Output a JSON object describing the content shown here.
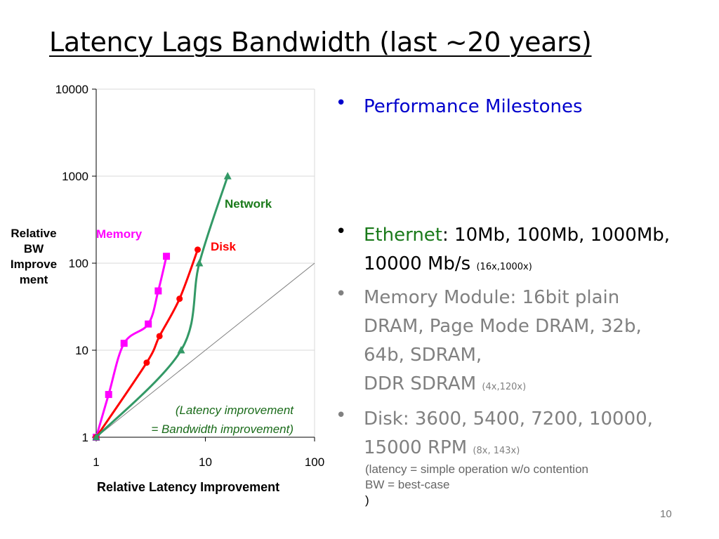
{
  "title": "Latency Lags Bandwidth (last ~20 years)",
  "chart_data": {
    "type": "line",
    "x_scale": "log",
    "y_scale": "log",
    "xlim": [
      1,
      100
    ],
    "ylim": [
      1,
      10000
    ],
    "x_ticks": [
      "1",
      "10",
      "100"
    ],
    "y_ticks": [
      "1",
      "10",
      "100",
      "1000",
      "10000"
    ],
    "xlabel": "Relative Latency Improvement",
    "ylabel_lines": [
      "Relative",
      "BW",
      "Improve",
      "ment"
    ],
    "grid": "horizontal",
    "series": [
      {
        "name": "Memory",
        "color": "#ff00ff",
        "marker": "square",
        "points": [
          [
            1,
            1
          ],
          [
            1.3,
            3.1
          ],
          [
            1.8,
            12
          ],
          [
            3.0,
            20
          ],
          [
            3.7,
            48
          ],
          [
            4.4,
            120
          ]
        ]
      },
      {
        "name": "Disk",
        "color": "#ff0000",
        "marker": "circle",
        "points": [
          [
            1,
            1
          ],
          [
            2.9,
            7.2
          ],
          [
            3.8,
            14.5
          ],
          [
            5.8,
            39
          ],
          [
            8.5,
            143
          ]
        ]
      },
      {
        "name": "Network",
        "color": "#339966",
        "marker": "triangle",
        "points": [
          [
            1,
            1
          ],
          [
            6.0,
            10
          ],
          [
            8.8,
            100
          ],
          [
            16,
            1000
          ]
        ]
      }
    ],
    "reference_line": {
      "points": [
        [
          1,
          1
        ],
        [
          100,
          100
        ]
      ],
      "color": "#808080"
    },
    "annotation_lines": [
      "(Latency improvement",
      "= Bandwidth improvement)"
    ]
  },
  "bullets": [
    {
      "marker": "•",
      "color": "#0000cc",
      "lines": [
        "Performance Milestones"
      ]
    },
    {
      "marker": "•",
      "highlight": "Ethernet",
      "highlight_color": "#1a7a1a",
      "rest": ": 10Mb, 100Mb, 1000Mb,",
      "line2": "10000 Mb/s",
      "small": "(16x,1000x)"
    },
    {
      "marker": "•",
      "color": "#808080",
      "lines": [
        "Memory Module: 16bit plain",
        "DRAM, Page Mode DRAM, 32b,",
        "64b, SDRAM,"
      ],
      "last": "DDR SDRAM",
      "small": "(4x,120x)"
    },
    {
      "marker": "•",
      "color": "#808080",
      "lines": [
        "Disk: 3600, 5400, 7200, 10000,"
      ],
      "last": "15000 RPM",
      "small": "(8x, 143x)"
    }
  ],
  "note": {
    "line1": "(latency = simple operation w/o contention",
    "line2a": "BW = best-case",
    "line2b": ")"
  },
  "page_number": "10"
}
